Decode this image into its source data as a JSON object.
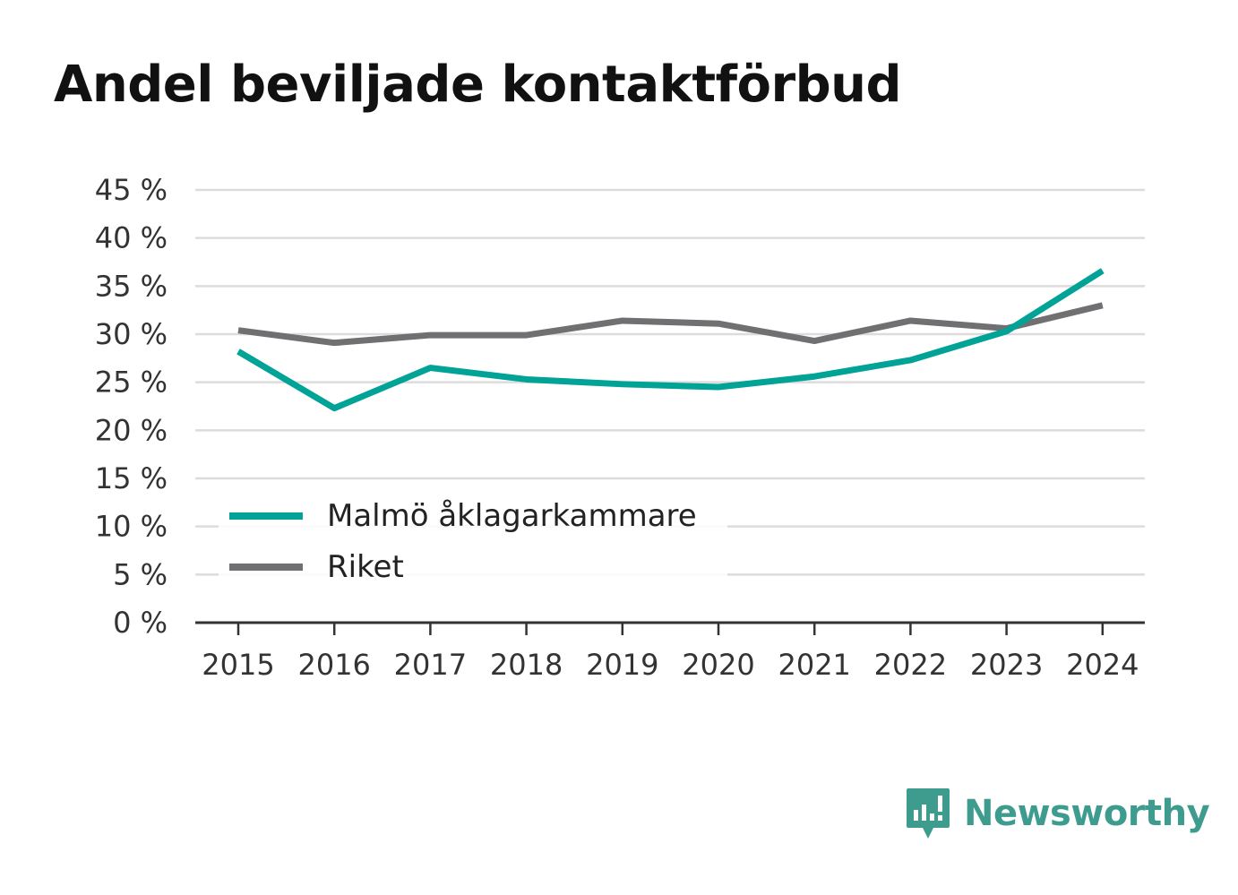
{
  "title": "Andel beviljade kontaktförbud",
  "brand": {
    "name": "Newsworthy",
    "icon": "newsworthy-logo-icon",
    "color": "#3d9c8e"
  },
  "chart_data": {
    "type": "line",
    "x": [
      "2015",
      "2016",
      "2017",
      "2018",
      "2019",
      "2020",
      "2021",
      "2022",
      "2023",
      "2024"
    ],
    "series": [
      {
        "name": "Malmö åklagarkammare",
        "color": "#00a396",
        "values": [
          28.2,
          22.3,
          26.5,
          25.3,
          24.8,
          24.5,
          25.6,
          27.3,
          30.3,
          36.6
        ]
      },
      {
        "name": "Riket",
        "color": "#707073",
        "values": [
          30.4,
          29.1,
          29.9,
          29.9,
          31.4,
          31.1,
          29.3,
          31.4,
          30.6,
          33.0
        ]
      }
    ],
    "ylim": [
      0,
      45
    ],
    "yticks": [
      0,
      5,
      10,
      15,
      20,
      25,
      30,
      35,
      40,
      45
    ],
    "ytick_labels": [
      "0 %",
      "5 %",
      "10 %",
      "15 %",
      "20 %",
      "25 %",
      "30 %",
      "35 %",
      "40 %",
      "45 %"
    ],
    "xlabel": "",
    "ylabel": "",
    "grid": true,
    "legend": "bottom-left"
  }
}
